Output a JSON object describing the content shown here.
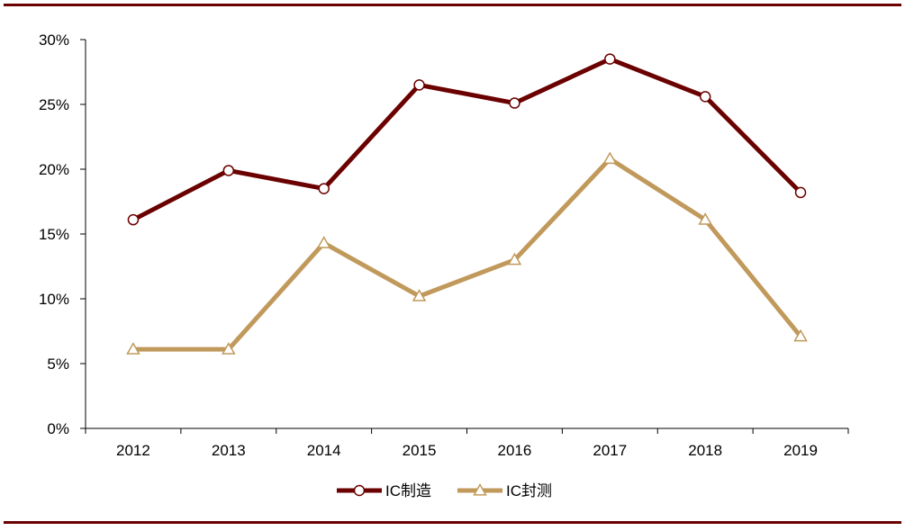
{
  "chart_data": {
    "type": "line",
    "categories": [
      "2012",
      "2013",
      "2014",
      "2015",
      "2016",
      "2017",
      "2018",
      "2019"
    ],
    "ylim": [
      0,
      30
    ],
    "yticks": [
      0,
      5,
      10,
      15,
      20,
      25,
      30
    ],
    "ytick_labels": [
      "0%",
      "5%",
      "10%",
      "15%",
      "20%",
      "25%",
      "30%"
    ],
    "grid": false,
    "legend_position": "bottom",
    "series": [
      {
        "name": "IC制造",
        "color": "#6b0000",
        "marker": "circle",
        "values": [
          16.1,
          19.9,
          18.5,
          26.5,
          25.1,
          28.5,
          25.6,
          18.2
        ]
      },
      {
        "name": "IC封测",
        "color": "#c0995b",
        "marker": "triangle",
        "values": [
          6.1,
          6.1,
          14.3,
          10.2,
          13.0,
          20.8,
          16.1,
          7.1
        ]
      }
    ]
  },
  "colors": {
    "rule": "#6b0000",
    "axis": "#000000"
  }
}
